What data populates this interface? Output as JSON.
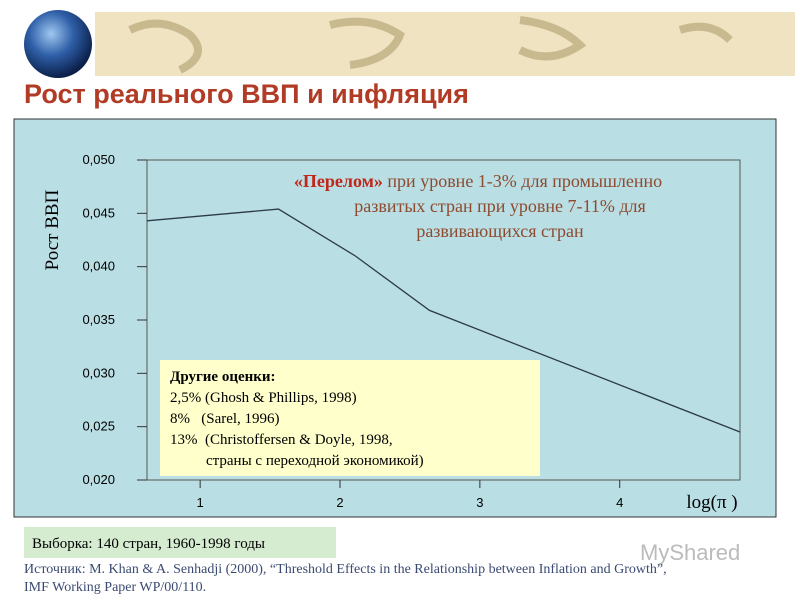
{
  "chart_data": {
    "type": "line",
    "title": "Рост реального ВВП и инфляция",
    "y_label": "Рост ВВП",
    "x_label": "log(π )",
    "x": [
      0.62,
      1.56,
      2.11,
      2.64,
      4.86
    ],
    "values": [
      0.0443,
      0.0454,
      0.041,
      0.0359,
      0.0245
    ],
    "color": "#2b3a4a",
    "xlim": [
      0.62,
      4.86
    ],
    "xticks": [
      1,
      2,
      3,
      4
    ],
    "ylim": [
      0.02,
      0.05
    ],
    "yticks": [
      {
        "value": 0.02,
        "label": "0,020"
      },
      {
        "value": 0.025,
        "label": "0,025"
      },
      {
        "value": 0.03,
        "label": "0,030"
      },
      {
        "value": 0.035,
        "label": "0,035"
      },
      {
        "value": 0.04,
        "label": "0,040"
      },
      {
        "value": 0.045,
        "label": "0,045"
      },
      {
        "value": 0.05,
        "label": "0,050"
      }
    ],
    "annotation": {
      "highlight": "«Перелом»",
      "lines": [
        " при уровне 1-3% для промышленно",
        "развитых стран при уровне 7-11% для",
        "развивающихся стран"
      ]
    },
    "other_estimates": {
      "title": "Другие оценки:",
      "items": [
        "2,5% (Ghosh & Phillips, 1998)",
        "8%   (Sarel, 1996)",
        "13%  (Christoffersen & Doyle, 1998,",
        "страны с переходной экономикой)"
      ]
    }
  },
  "sample_note": "Выборка: 140 стран, 1960-1998 годы",
  "source": [
    "Источник:  M. Khan & A. Senhadji (2000), “Threshold Effects in the Relationship between Inflation and Growth”,",
    "IMF Working Paper WP/00/110."
  ],
  "watermark": "MyShared"
}
